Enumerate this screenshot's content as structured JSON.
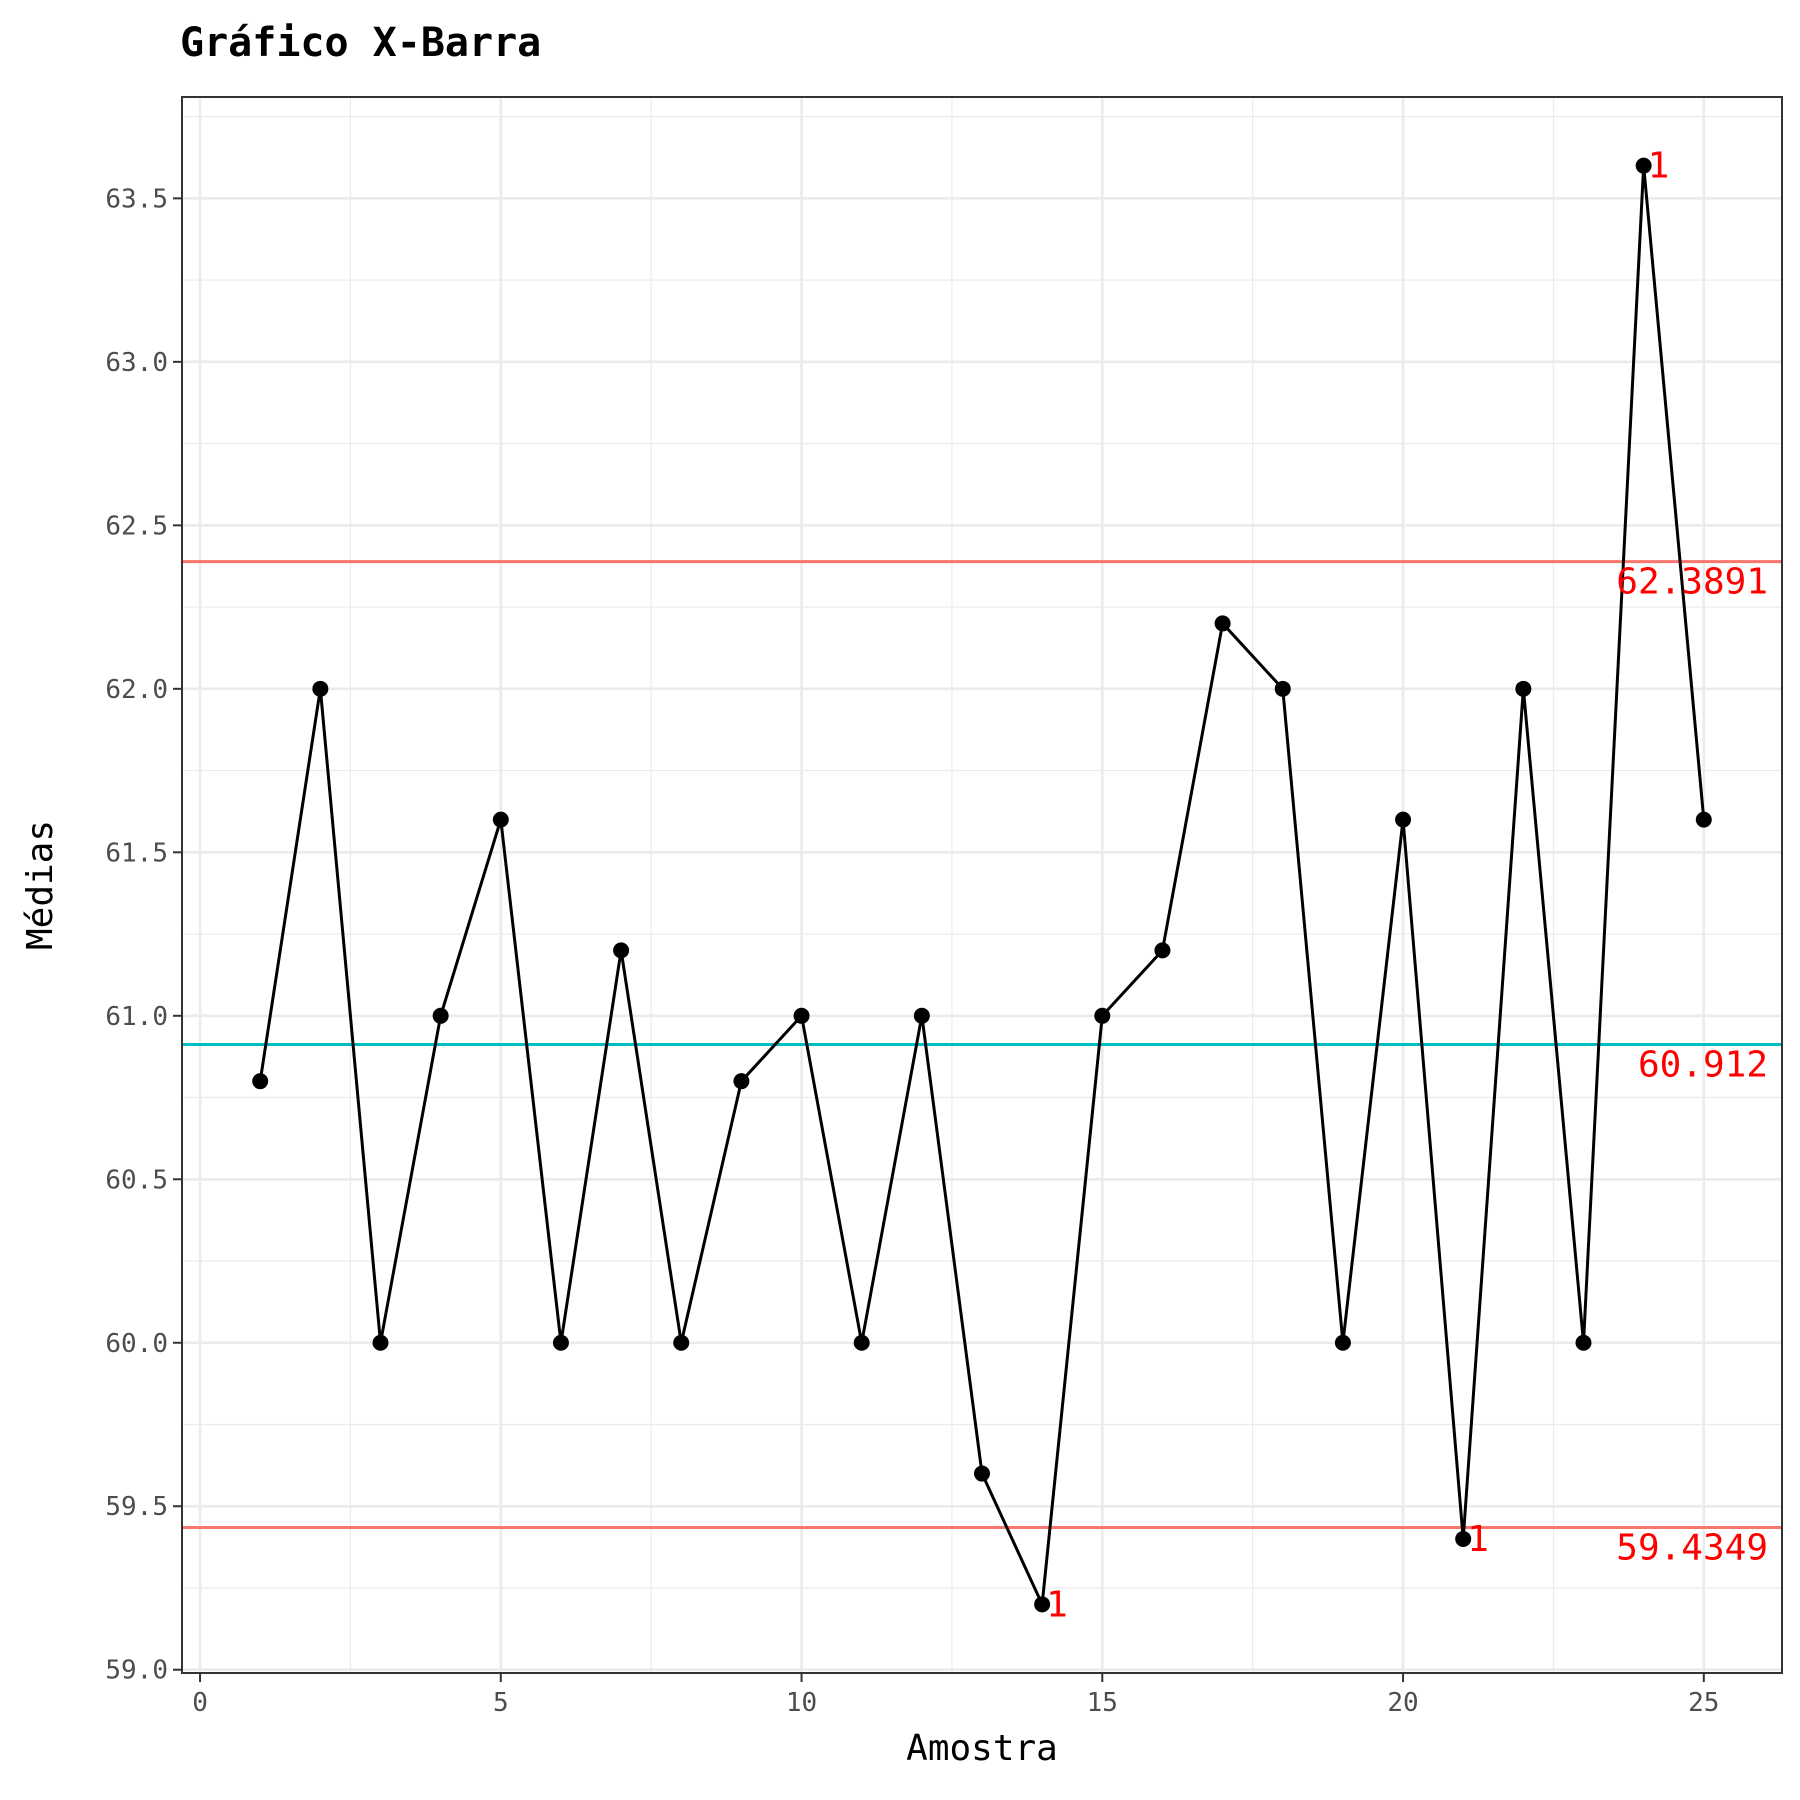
{
  "chart_data": {
    "type": "line",
    "title": "Gráfico X-Barra",
    "xlabel": "Amostra",
    "ylabel": "Médias",
    "xlim": [
      -0.3,
      26.3
    ],
    "ylim": [
      58.99,
      63.81
    ],
    "x_ticks": [
      0,
      5,
      10,
      15,
      20,
      25
    ],
    "x_tick_labels": [
      "0",
      "5",
      "10",
      "15",
      "20",
      "25"
    ],
    "y_ticks": [
      59.0,
      59.5,
      60.0,
      60.5,
      61.0,
      61.5,
      62.0,
      62.5,
      63.0,
      63.5
    ],
    "y_tick_labels": [
      "59.0",
      "59.5",
      "60.0",
      "60.5",
      "61.0",
      "61.5",
      "62.0",
      "62.5",
      "63.0",
      "63.5"
    ],
    "grid": true,
    "series": [
      {
        "x": [
          1,
          2,
          3,
          4,
          5,
          6,
          7,
          8,
          9,
          10,
          11,
          12,
          13,
          14,
          15,
          16,
          17,
          18,
          19,
          20,
          21,
          22,
          23,
          24,
          25
        ],
        "values": [
          60.8,
          62.0,
          60.0,
          61.0,
          61.6,
          60.0,
          61.2,
          60.0,
          60.8,
          61.0,
          60.0,
          61.0,
          59.6,
          59.2,
          61.0,
          61.2,
          62.2,
          62.0,
          60.0,
          61.6,
          59.4,
          62.0,
          60.0,
          63.6,
          61.6
        ],
        "color": "#000000"
      }
    ],
    "reference_lines": [
      {
        "y": 62.3891,
        "label": "62.3891",
        "color": "#f8766d"
      },
      {
        "y": 60.912,
        "label": "60.912",
        "color": "#00bfc4"
      },
      {
        "y": 59.4349,
        "label": "59.4349",
        "color": "#f8766d"
      }
    ],
    "annotations": [
      {
        "x": 14,
        "y": 59.2,
        "text": "1"
      },
      {
        "x": 21,
        "y": 59.4,
        "text": "1"
      },
      {
        "x": 24,
        "y": 63.6,
        "text": "1"
      }
    ],
    "annotation_color": "#ff0000"
  }
}
